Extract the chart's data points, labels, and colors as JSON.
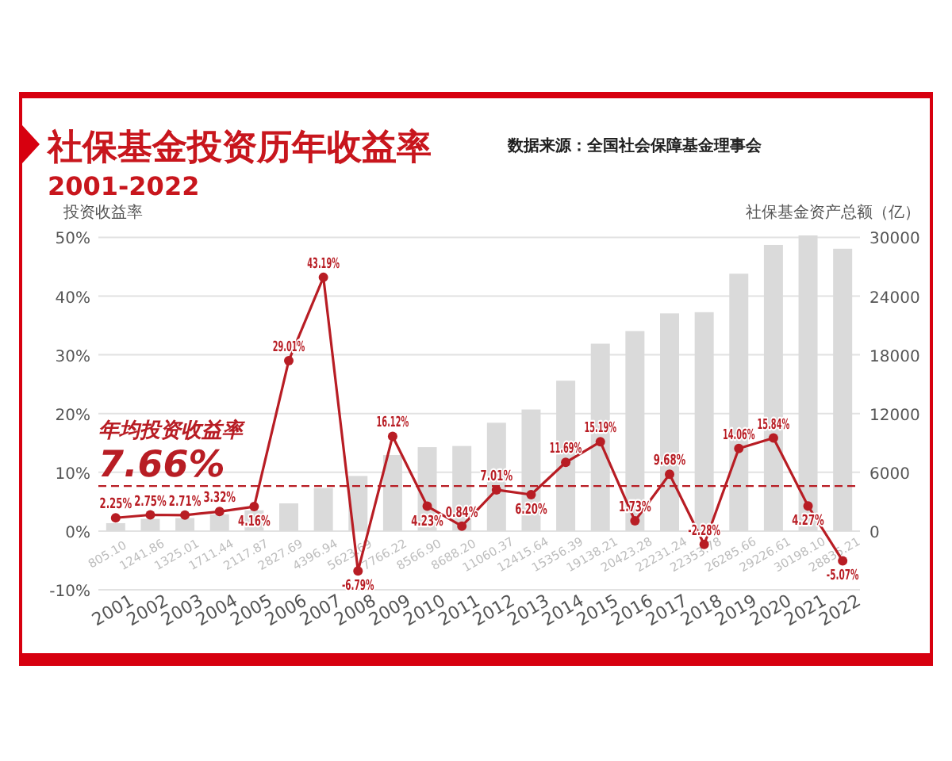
{
  "chart_data": {
    "type": "bar",
    "title": "社保基金投资历年收益率",
    "subtitle": "2001-2022",
    "ylabel": "投资收益率",
    "y2label": "社保基金资产总额（亿）",
    "annotations": [
      "数据来源：全国社会保障基金理事会"
    ],
    "categories": [
      "2001",
      "2002",
      "2003",
      "2004",
      "2005",
      "2006",
      "2007",
      "2008",
      "2009",
      "2010",
      "2011",
      "2012",
      "2013",
      "2014",
      "2015",
      "2016",
      "2017",
      "2018",
      "2019",
      "2020",
      "2021",
      "2022"
    ],
    "series": [
      {
        "axis": "y2",
        "color": "#dadada",
        "values": [
          805.1,
          1241.86,
          1325.01,
          1711.44,
          2117.87,
          2827.69,
          4396.94,
          5623.69,
          7766.22,
          8566.9,
          8688.2,
          11060.37,
          12415.64,
          15356.39,
          19138.21,
          20423.28,
          22231.24,
          22353.78,
          26285.66,
          29226.61,
          30198.1,
          28835.21
        ],
        "value_labels": [
          "805.10",
          "1241.86",
          "1325.01",
          "1711.44",
          "2117.87",
          "2827.69",
          "4396.94",
          "5623.69",
          "7766.22",
          "8566.90",
          "8688.20",
          "11060.37",
          "12415.64",
          "15356.39",
          "19138.21",
          "20423.28",
          "22231.24",
          "22353.78",
          "26285.66",
          "29226.61",
          "30198.10",
          "28835.21"
        ]
      },
      {
        "type": "line",
        "color": "#b81d24",
        "values": [
          2.25,
          2.75,
          2.71,
          3.32,
          4.16,
          29.01,
          43.19,
          -6.79,
          16.12,
          4.23,
          0.84,
          7.01,
          6.2,
          11.69,
          15.19,
          1.73,
          9.68,
          -2.28,
          14.06,
          15.84,
          4.27,
          -5.07
        ],
        "value_labels": [
          "2.25%",
          "2.75%",
          "2.71%",
          "3.32%",
          "4.16%",
          "29.01%",
          "43.19%",
          "-6.79%",
          "16.12%",
          "4.23%",
          "0.84%",
          "7.01%",
          "6.20%",
          "11.69%",
          "15.19%",
          "1.73%",
          "9.68%",
          "-2.28%",
          "14.06%",
          "15.84%",
          "4.27%",
          "-5.07%"
        ]
      }
    ],
    "marker": "circle",
    "grid": "y",
    "ylim": [
      -10,
      51
    ],
    "yticks": [
      {
        "value": -10,
        "label": "-10%"
      },
      {
        "value": 0,
        "label": "0%"
      },
      {
        "value": 10,
        "label": "10%"
      },
      {
        "value": 20,
        "label": "20%"
      },
      {
        "value": 30,
        "label": "30%"
      },
      {
        "value": 40,
        "label": "40%"
      },
      {
        "value": 50,
        "label": "50%"
      }
    ],
    "y2lim": [
      -6000,
      30600
    ],
    "y2ticks": [
      0,
      6000,
      12000,
      18000,
      24000,
      30000
    ],
    "ref_lines": [
      {
        "axis": "y",
        "value": 7.66,
        "label": "年均投资收益率\n7.66%",
        "color": "#b81d24",
        "line_style": "dashed"
      }
    ]
  }
}
